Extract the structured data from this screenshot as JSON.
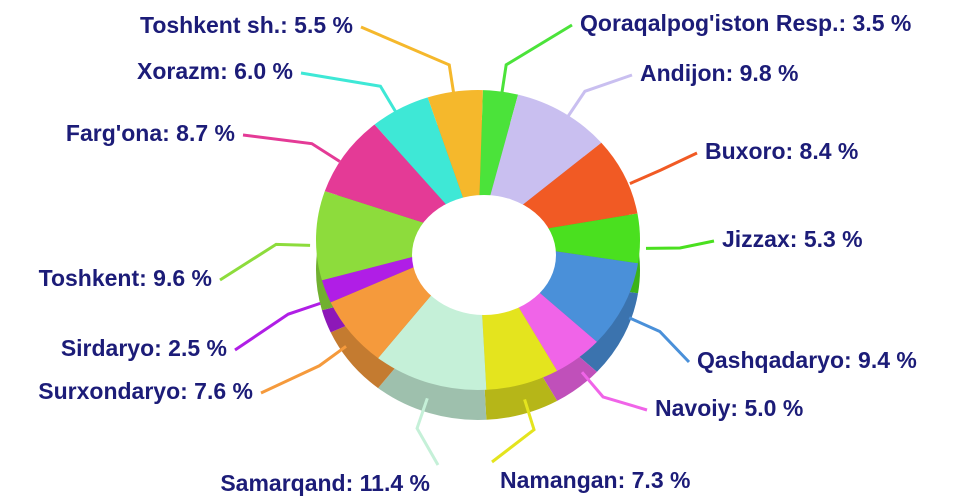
{
  "chart_data": {
    "type": "pie",
    "categories": [
      "Qoraqalpog'iston Resp.: 3.5 %",
      "Andijon: 9.8 %",
      "Buxoro: 8.4 %",
      "Jizzax: 5.3 %",
      "Qashqadaryo: 9.4 %",
      "Navoiy: 5.0 %",
      "Namangan: 7.3 %",
      "Samarqand: 11.4 %",
      "Surxondaryo: 7.6 %",
      "Sirdaryo: 2.5 %",
      "Toshkent: 9.6 %",
      "Farg'ona: 8.7 %",
      "Xorazm: 6.0 %",
      "Toshkent sh.: 5.5 %"
    ],
    "values": [
      3.5,
      9.8,
      8.4,
      5.3,
      9.4,
      5.0,
      7.3,
      11.4,
      7.6,
      2.5,
      9.6,
      8.7,
      6.0,
      5.5
    ],
    "colors": [
      "#4be33a",
      "#c9bff0",
      "#f15a24",
      "#4ae01f",
      "#4a90d9",
      "#f064e8",
      "#e4e41e",
      "#c5f0d8",
      "#f59a3c",
      "#b01ee6",
      "#8ddc3c",
      "#e43a96",
      "#3ee8d6",
      "#f5b82c"
    ]
  }
}
